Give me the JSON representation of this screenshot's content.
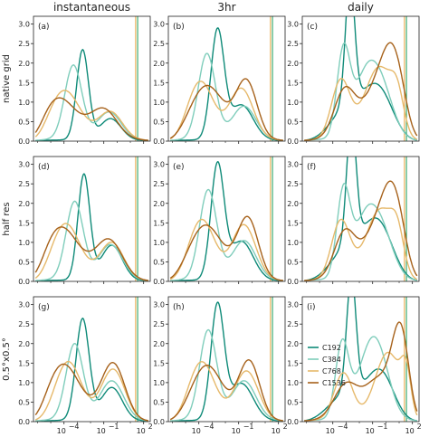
{
  "column_titles": [
    "instantaneous",
    "3hr",
    "daily"
  ],
  "row_labels": [
    "native grid",
    "half res",
    "0.5°x0.5°"
  ],
  "chart_data": {
    "type": "line",
    "xscale": "log",
    "xlim_log10": [
      -6.3,
      2.5
    ],
    "ylim": [
      0,
      3.2
    ],
    "y_ticks": [
      "0.0",
      "0.5",
      "1.0",
      "1.5",
      "2.0",
      "2.5",
      "3.0"
    ],
    "x_ticks": [
      "10",
      "10",
      "10"
    ],
    "x_tick_exps": [
      "−4",
      "−1",
      "2"
    ],
    "x_tick_values_log10": [
      -4,
      -1,
      2
    ],
    "grid": false,
    "legend": {
      "placement": "lower-left",
      "panel": 8
    },
    "series_colors": {
      "C192": "#0e8a78",
      "C384": "#7fcdbb",
      "C768": "#e6b96b",
      "C1536": "#a6611a"
    },
    "panels": [
      {
        "label": "(a)",
        "vlines": [
          1.4,
          1.55
        ],
        "series": [
          {
            "name": "C192",
            "peaks": [
              [
                -2.6,
                2.3,
                0.45
              ],
              [
                -0.5,
                0.55,
                0.8
              ]
            ],
            "base": 0.03
          },
          {
            "name": "C384",
            "peaks": [
              [
                -3.3,
                1.9,
                0.65
              ],
              [
                -0.6,
                0.7,
                0.9
              ]
            ],
            "base": 0.05
          },
          {
            "name": "C768",
            "peaks": [
              [
                -4.0,
                1.27,
                1.2
              ],
              [
                -0.5,
                0.7,
                0.9
              ]
            ],
            "base": 0.05
          },
          {
            "name": "C1536",
            "peaks": [
              [
                -4.5,
                1.1,
                1.4
              ],
              [
                -1.0,
                0.75,
                1.0
              ]
            ],
            "base": 0.05
          }
        ]
      },
      {
        "label": "(b)",
        "vlines": [
          1.4,
          1.55
        ],
        "series": [
          {
            "name": "C192",
            "peaks": [
              [
                -2.6,
                2.75,
                0.5
              ],
              [
                -0.8,
                0.9,
                0.9
              ]
            ],
            "base": 0.03
          },
          {
            "name": "C384",
            "peaks": [
              [
                -3.4,
                2.2,
                0.65
              ],
              [
                -0.6,
                0.85,
                0.9
              ]
            ],
            "base": 0.05
          },
          {
            "name": "C768",
            "peaks": [
              [
                -3.9,
                1.5,
                1.0
              ],
              [
                -0.8,
                1.3,
                0.9
              ]
            ],
            "base": 0.05
          },
          {
            "name": "C1536",
            "peaks": [
              [
                -3.4,
                1.38,
                1.3
              ],
              [
                -0.4,
                1.45,
                0.8
              ]
            ],
            "base": 0.05
          }
        ]
      },
      {
        "label": "(c)",
        "vlines": [
          1.4,
          1.55
        ],
        "series": [
          {
            "name": "C192",
            "peaks": [
              [
                -2.7,
                3.15,
                0.35
              ],
              [
                -0.6,
                1.3,
                1.1
              ],
              [
                -2.9,
                0.8,
                1.2
              ]
            ],
            "base": 0.03
          },
          {
            "name": "C384",
            "peaks": [
              [
                -3.2,
                2.2,
                0.5
              ],
              [
                -0.6,
                1.6,
                1.0
              ],
              [
                -1.8,
                0.9,
                0.8
              ]
            ],
            "base": 0.05
          },
          {
            "name": "C768",
            "peaks": [
              [
                -3.4,
                1.5,
                0.7
              ],
              [
                -0.5,
                1.85,
                1.1
              ],
              [
                0.9,
                0.8,
                0.5
              ]
            ],
            "base": 0.05
          },
          {
            "name": "C1536",
            "peaks": [
              [
                -3.1,
                1.25,
                0.8
              ],
              [
                0.6,
                2.15,
                0.9
              ],
              [
                -0.9,
                1.0,
                1.0
              ]
            ],
            "base": 0.05
          }
        ]
      },
      {
        "label": "(d)",
        "vlines": [
          1.4,
          1.55
        ],
        "series": [
          {
            "name": "C192",
            "peaks": [
              [
                -2.5,
                2.7,
                0.45
              ],
              [
                -0.4,
                0.9,
                0.8
              ]
            ],
            "base": 0.03
          },
          {
            "name": "C384",
            "peaks": [
              [
                -3.2,
                2.0,
                0.65
              ],
              [
                -0.5,
                0.9,
                0.9
              ]
            ],
            "base": 0.05
          },
          {
            "name": "C768",
            "peaks": [
              [
                -3.9,
                1.45,
                1.1
              ],
              [
                -0.4,
                0.95,
                0.9
              ]
            ],
            "base": 0.05
          },
          {
            "name": "C1536",
            "peaks": [
              [
                -4.3,
                1.38,
                1.4
              ],
              [
                -0.6,
                1.0,
                1.0
              ]
            ],
            "base": 0.05
          }
        ]
      },
      {
        "label": "(e)",
        "vlines": [
          1.4,
          1.55
        ],
        "series": [
          {
            "name": "C192",
            "peaks": [
              [
                -2.6,
                2.9,
                0.5
              ],
              [
                -0.8,
                1.0,
                0.9
              ]
            ],
            "base": 0.03
          },
          {
            "name": "C384",
            "peaks": [
              [
                -3.3,
                2.3,
                0.65
              ],
              [
                -0.6,
                1.0,
                0.9
              ]
            ],
            "base": 0.05
          },
          {
            "name": "C768",
            "peaks": [
              [
                -3.8,
                1.55,
                1.0
              ],
              [
                -0.6,
                1.4,
                0.9
              ]
            ],
            "base": 0.05
          },
          {
            "name": "C1536",
            "peaks": [
              [
                -3.5,
                1.4,
                1.3
              ],
              [
                -0.3,
                1.55,
                0.8
              ]
            ],
            "base": 0.05
          }
        ]
      },
      {
        "label": "(f)",
        "vlines": [
          1.4,
          1.55
        ],
        "series": [
          {
            "name": "C192",
            "peaks": [
              [
                -2.6,
                3.15,
                0.35
              ],
              [
                -0.6,
                1.45,
                1.1
              ],
              [
                -2.9,
                0.8,
                1.2
              ]
            ],
            "base": 0.03
          },
          {
            "name": "C384",
            "peaks": [
              [
                -3.2,
                2.2,
                0.5
              ],
              [
                -0.6,
                1.5,
                1.0
              ],
              [
                -1.8,
                0.9,
                0.8
              ]
            ],
            "base": 0.05
          },
          {
            "name": "C768",
            "peaks": [
              [
                -3.4,
                1.5,
                0.7
              ],
              [
                -0.4,
                1.8,
                1.1
              ],
              [
                0.9,
                0.8,
                0.5
              ]
            ],
            "base": 0.05
          },
          {
            "name": "C1536",
            "peaks": [
              [
                -3.1,
                1.2,
                0.8
              ],
              [
                0.6,
                2.2,
                0.9
              ],
              [
                -0.9,
                1.0,
                1.0
              ]
            ],
            "base": 0.05
          }
        ]
      },
      {
        "label": "(g)",
        "vlines": [
          1.4,
          1.55
        ],
        "series": [
          {
            "name": "C192",
            "peaks": [
              [
                -2.6,
                2.6,
                0.5
              ],
              [
                -0.4,
                0.85,
                0.8
              ]
            ],
            "base": 0.03
          },
          {
            "name": "C384",
            "peaks": [
              [
                -3.2,
                1.95,
                0.65
              ],
              [
                -0.4,
                1.0,
                0.9
              ]
            ],
            "base": 0.05
          },
          {
            "name": "C768",
            "peaks": [
              [
                -3.7,
                1.5,
                1.0
              ],
              [
                -0.3,
                1.3,
                0.9
              ]
            ],
            "base": 0.05
          },
          {
            "name": "C1536",
            "peaks": [
              [
                -4.1,
                1.45,
                1.3
              ],
              [
                -0.3,
                1.45,
                0.9
              ]
            ],
            "base": 0.05
          }
        ]
      },
      {
        "label": "(h)",
        "vlines": [
          1.4,
          1.55
        ],
        "series": [
          {
            "name": "C192",
            "peaks": [
              [
                -2.6,
                2.9,
                0.5
              ],
              [
                -0.8,
                0.95,
                0.9
              ]
            ],
            "base": 0.03
          },
          {
            "name": "C384",
            "peaks": [
              [
                -3.3,
                2.3,
                0.65
              ],
              [
                -0.6,
                1.0,
                0.9
              ]
            ],
            "base": 0.05
          },
          {
            "name": "C768",
            "peaks": [
              [
                -3.8,
                1.5,
                1.0
              ],
              [
                -0.4,
                1.25,
                0.9
              ]
            ],
            "base": 0.05
          },
          {
            "name": "C1536",
            "peaks": [
              [
                -3.4,
                1.4,
                1.2
              ],
              [
                -0.2,
                1.5,
                0.8
              ]
            ],
            "base": 0.05
          }
        ]
      },
      {
        "label": "(i)",
        "vlines": [
          1.4,
          1.55
        ],
        "series": [
          {
            "name": "C192",
            "peaks": [
              [
                -2.6,
                2.95,
                0.35
              ],
              [
                -0.4,
                1.2,
                1.0
              ],
              [
                -2.9,
                0.7,
                1.3
              ]
            ],
            "base": 0.03
          },
          {
            "name": "C384",
            "peaks": [
              [
                -3.3,
                1.9,
                0.5
              ],
              [
                -0.6,
                1.55,
                0.9
              ],
              [
                -1.6,
                0.9,
                0.9
              ]
            ],
            "base": 0.05
          },
          {
            "name": "C768",
            "peaks": [
              [
                -3.2,
                1.2,
                0.7
              ],
              [
                0.2,
                1.75,
                1.0
              ],
              [
                1.6,
                1.3,
                0.4
              ]
            ],
            "base": 0.05
          },
          {
            "name": "C1536",
            "peaks": [
              [
                -3.0,
                0.9,
                0.9
              ],
              [
                1.2,
                2.55,
                0.7
              ],
              [
                -0.6,
                1.0,
                1.0
              ]
            ],
            "base": 0.05
          }
        ]
      }
    ]
  }
}
